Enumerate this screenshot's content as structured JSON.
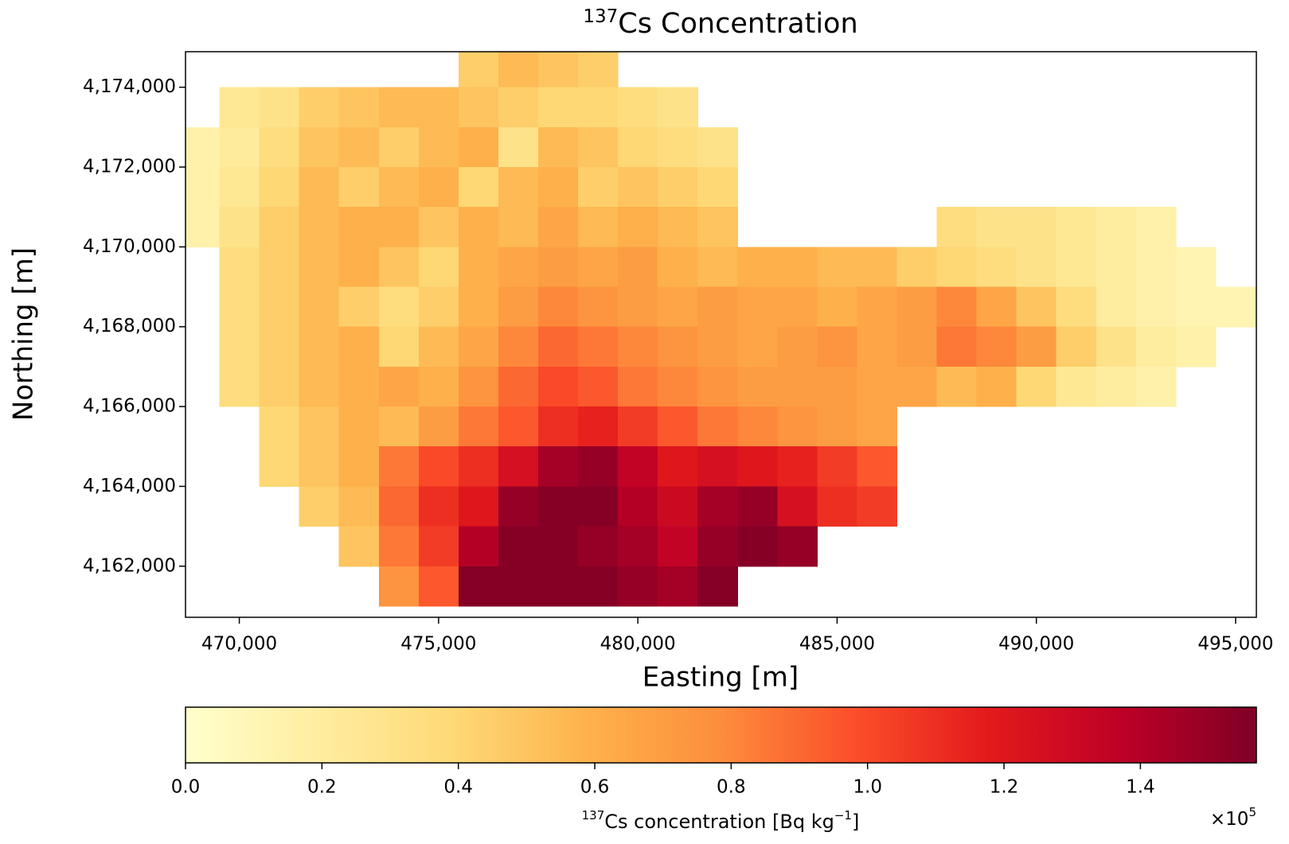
{
  "chart_data": {
    "type": "heatmap",
    "title_superscript": "137",
    "title": "Cs Concentration",
    "x_label": "Easting [m]",
    "y_label": "Northing [m]",
    "xlim": [
      468650,
      495520
    ],
    "ylim": [
      4160720,
      4174890
    ],
    "xticks": [
      {
        "value": 470000,
        "label": "470,000"
      },
      {
        "value": 475000,
        "label": "475,000"
      },
      {
        "value": 480000,
        "label": "480,000"
      },
      {
        "value": 485000,
        "label": "485,000"
      },
      {
        "value": 490000,
        "label": "490,000"
      },
      {
        "value": 495000,
        "label": "495,000"
      }
    ],
    "yticks": [
      {
        "value": 4162000,
        "label": "4,162,000"
      },
      {
        "value": 4164000,
        "label": "4,164,000"
      },
      {
        "value": 4166000,
        "label": "4,166,000"
      },
      {
        "value": 4168000,
        "label": "4,168,000"
      },
      {
        "value": 4170000,
        "label": "4,170,000"
      },
      {
        "value": 4172000,
        "label": "4,172,000"
      },
      {
        "value": 4174000,
        "label": "4,174,000"
      }
    ],
    "x": [
      469000,
      470000,
      471000,
      472000,
      473000,
      474000,
      475000,
      476000,
      477000,
      478000,
      479000,
      480000,
      481000,
      482000,
      483000,
      484000,
      485000,
      486000,
      487000,
      488000,
      489000,
      490000,
      491000,
      492000,
      493000,
      494000,
      495000
    ],
    "y": [
      4174500,
      4173500,
      4172500,
      4171500,
      4170500,
      4169500,
      4168500,
      4167500,
      4166500,
      4165500,
      4164500,
      4163500,
      4162500,
      4161500
    ],
    "z": [
      [
        null,
        null,
        null,
        null,
        null,
        null,
        null,
        45000,
        55000,
        50000,
        45000,
        null,
        null,
        null,
        null,
        null,
        null,
        null,
        null,
        null,
        null,
        null,
        null,
        null,
        null,
        null,
        null
      ],
      [
        null,
        25000,
        30000,
        45000,
        50000,
        55000,
        55000,
        50000,
        45000,
        40000,
        40000,
        35000,
        30000,
        null,
        null,
        null,
        null,
        null,
        null,
        null,
        null,
        null,
        null,
        null,
        null,
        null,
        null
      ],
      [
        15000,
        22000,
        35000,
        50000,
        55000,
        45000,
        55000,
        60000,
        30000,
        55000,
        50000,
        40000,
        35000,
        30000,
        null,
        null,
        null,
        null,
        null,
        null,
        null,
        null,
        null,
        null,
        null,
        null,
        null
      ],
      [
        15000,
        25000,
        40000,
        55000,
        45000,
        55000,
        60000,
        40000,
        55000,
        60000,
        45000,
        50000,
        45000,
        40000,
        null,
        null,
        null,
        null,
        null,
        null,
        null,
        null,
        null,
        null,
        null,
        null,
        null
      ],
      [
        15000,
        30000,
        45000,
        55000,
        60000,
        60000,
        50000,
        60000,
        55000,
        65000,
        55000,
        60000,
        55000,
        50000,
        null,
        null,
        null,
        null,
        null,
        35000,
        30000,
        30000,
        25000,
        20000,
        15000,
        null,
        null
      ],
      [
        null,
        35000,
        45000,
        55000,
        60000,
        50000,
        40000,
        60000,
        65000,
        70000,
        65000,
        70000,
        60000,
        55000,
        60000,
        60000,
        55000,
        55000,
        45000,
        40000,
        35000,
        30000,
        25000,
        20000,
        15000,
        12000,
        null
      ],
      [
        null,
        35000,
        45000,
        55000,
        45000,
        35000,
        45000,
        60000,
        70000,
        80000,
        75000,
        70000,
        65000,
        70000,
        65000,
        65000,
        60000,
        65000,
        70000,
        80000,
        65000,
        50000,
        35000,
        20000,
        15000,
        12000,
        12000
      ],
      [
        null,
        35000,
        45000,
        55000,
        60000,
        40000,
        55000,
        65000,
        80000,
        90000,
        85000,
        80000,
        75000,
        70000,
        65000,
        70000,
        75000,
        65000,
        70000,
        85000,
        80000,
        70000,
        45000,
        30000,
        20000,
        15000,
        null
      ],
      [
        null,
        35000,
        45000,
        55000,
        60000,
        65000,
        60000,
        75000,
        90000,
        100000,
        95000,
        85000,
        80000,
        75000,
        70000,
        70000,
        70000,
        65000,
        65000,
        55000,
        60000,
        40000,
        25000,
        20000,
        15000,
        null,
        null
      ],
      [
        null,
        null,
        40000,
        50000,
        60000,
        55000,
        70000,
        85000,
        95000,
        110000,
        115000,
        105000,
        95000,
        85000,
        80000,
        75000,
        70000,
        65000,
        null,
        null,
        null,
        null,
        null,
        null,
        null,
        null,
        null
      ],
      [
        null,
        null,
        40000,
        50000,
        60000,
        85000,
        100000,
        110000,
        125000,
        145000,
        150000,
        135000,
        120000,
        125000,
        120000,
        115000,
        105000,
        95000,
        null,
        null,
        null,
        null,
        null,
        null,
        null,
        null,
        null
      ],
      [
        null,
        null,
        null,
        45000,
        55000,
        90000,
        110000,
        120000,
        150000,
        155000,
        155000,
        140000,
        130000,
        145000,
        150000,
        125000,
        110000,
        105000,
        null,
        null,
        null,
        null,
        null,
        null,
        null,
        null,
        null
      ],
      [
        null,
        null,
        null,
        null,
        50000,
        85000,
        105000,
        140000,
        155000,
        155000,
        150000,
        145000,
        135000,
        150000,
        155000,
        150000,
        null,
        null,
        null,
        null,
        null,
        null,
        null,
        null,
        null,
        null,
        null
      ],
      [
        null,
        null,
        null,
        null,
        null,
        75000,
        95000,
        155000,
        155000,
        155000,
        155000,
        150000,
        145000,
        155000,
        null,
        null,
        null,
        null,
        null,
        null,
        null,
        null,
        null,
        null,
        null,
        null,
        null
      ]
    ],
    "colors": [
      "#ffffcc",
      "#ffeda0",
      "#fed976",
      "#feb24c",
      "#fd8d3c",
      "#fc4e2a",
      "#e31a1c",
      "#bd0026",
      "#800026"
    ],
    "clim": [
      0,
      157000
    ],
    "colorbar_ticks": [
      {
        "value": 0,
        "label": "0.0"
      },
      {
        "value": 20000,
        "label": "0.2"
      },
      {
        "value": 40000,
        "label": "0.4"
      },
      {
        "value": 60000,
        "label": "0.6"
      },
      {
        "value": 80000,
        "label": "0.8"
      },
      {
        "value": 100000,
        "label": "1.0"
      },
      {
        "value": 120000,
        "label": "1.2"
      },
      {
        "value": 140000,
        "label": "1.4"
      }
    ],
    "colorbar_label_superscript": "137",
    "colorbar_label": "Cs concentration [Bq kg",
    "colorbar_label_exponent": "−1",
    "colorbar_label_end": "]",
    "colorbar_offset": "×10",
    "colorbar_offset_exponent": "5"
  }
}
